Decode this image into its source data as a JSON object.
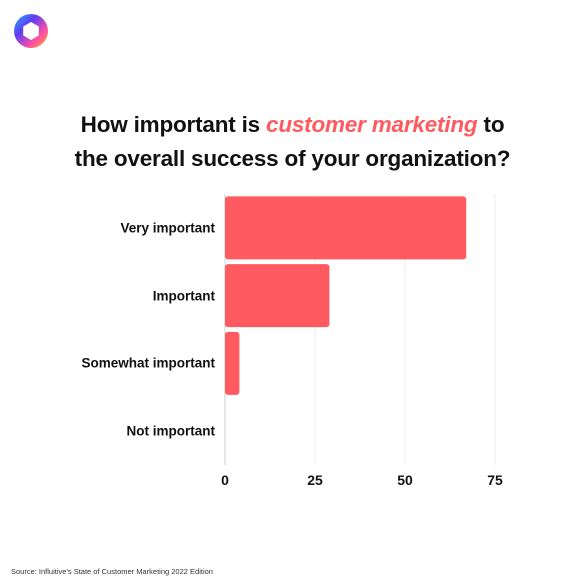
{
  "brand": {
    "logo_icon": "hexagon-gradient-logo",
    "colors": [
      "#5b3df5",
      "#ff4fa3",
      "#ffb020",
      "#2bb6f0"
    ]
  },
  "title": {
    "before": "How important is ",
    "highlight": "customer marketing",
    "after_line1": " to",
    "line2": "the overall success of your organization?"
  },
  "chart_data": {
    "type": "bar",
    "orientation": "horizontal",
    "categories": [
      "Very important",
      "Important",
      "Somewhat important",
      "Not important"
    ],
    "values": [
      67,
      29,
      4,
      0
    ],
    "xlim": [
      0,
      75
    ],
    "xticks": [
      "0",
      "25",
      "50",
      "75"
    ],
    "grid": true,
    "bar_color": "#ff5a5f",
    "highlight_color": "#ff5a5f"
  },
  "source": "Source: Influitive's State of Customer Marketing 2022 Edition"
}
